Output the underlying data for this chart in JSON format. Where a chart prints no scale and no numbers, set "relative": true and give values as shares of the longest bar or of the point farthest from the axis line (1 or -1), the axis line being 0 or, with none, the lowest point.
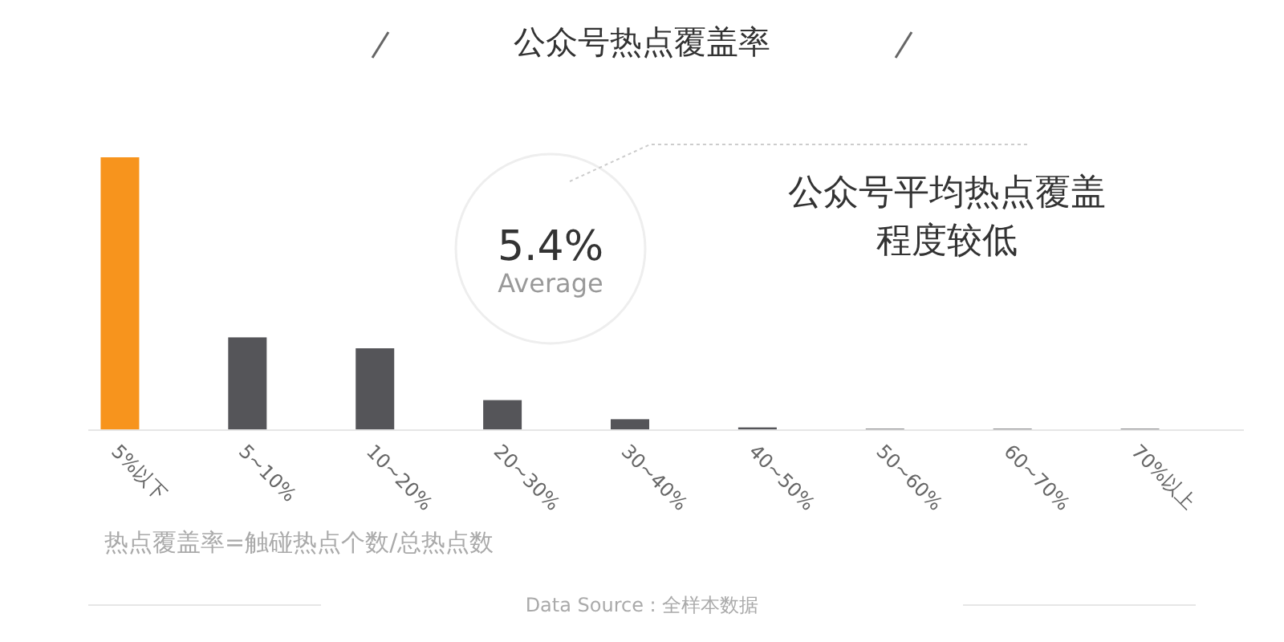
{
  "chart_data": {
    "type": "bar",
    "title": "公众号热点覆盖率",
    "categories": [
      "5%以下",
      "5~10%",
      "10~20%",
      "20~30%",
      "30~40%",
      "40~50%",
      "50~60%",
      "60~70%",
      "70%以上"
    ],
    "values": [
      1,
      0.34,
      0.3,
      0.11,
      0.04,
      0.01,
      0.005,
      0.005,
      0.005
    ],
    "colors": [
      "#f7941d",
      "#555559",
      "#555559",
      "#555559",
      "#555559",
      "#555559",
      "#555559",
      "#555559",
      "#555559"
    ],
    "relative": true,
    "annotations": [
      "5.4%",
      "Average",
      "公众号平均热点覆盖程度较低",
      "热点覆盖率=触碰热点个数/总热点数",
      "Data Source : 全样本数据"
    ]
  }
}
